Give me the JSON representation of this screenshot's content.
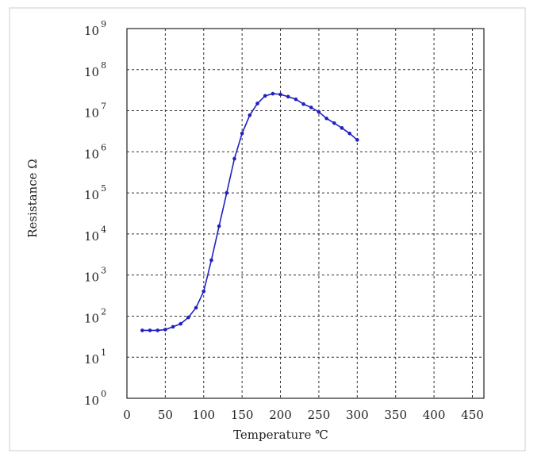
{
  "chart_data": {
    "type": "line",
    "x_label": "Temperature ℃",
    "y_label": "Resistance Ω",
    "log_y": true,
    "grid": true,
    "xlim": [
      0,
      465
    ],
    "ylim": [
      1,
      1000000000
    ],
    "xticks": [
      0,
      50,
      100,
      150,
      200,
      250,
      300,
      350,
      400,
      450
    ],
    "yticks": [
      {
        "value": 1,
        "label": "10",
        "exponent": "0"
      },
      {
        "value": 10,
        "label": "10",
        "exponent": "1"
      },
      {
        "value": 100,
        "label": "10",
        "exponent": "2"
      },
      {
        "value": 1000,
        "label": "10",
        "exponent": "3"
      },
      {
        "value": 10000,
        "label": "10",
        "exponent": "4"
      },
      {
        "value": 100000,
        "label": "10",
        "exponent": "5"
      },
      {
        "value": 1000000,
        "label": "10",
        "exponent": "6"
      },
      {
        "value": 10000000,
        "label": "10",
        "exponent": "7"
      },
      {
        "value": 100000000,
        "label": "10",
        "exponent": "8"
      },
      {
        "value": 1000000000,
        "label": "10",
        "exponent": "9"
      }
    ],
    "x": [
      20,
      30,
      40,
      50,
      60,
      70,
      80,
      90,
      100,
      110,
      120,
      130,
      140,
      150,
      160,
      170,
      180,
      190,
      200,
      210,
      220,
      230,
      240,
      250,
      260,
      270,
      280,
      290,
      300
    ],
    "series": [
      {
        "color": "#2020c0",
        "values": [
          45,
          45,
          45,
          47,
          55,
          65,
          93,
          160,
          400,
          2300,
          15500,
          100000,
          680000,
          2800000,
          7800000,
          15000000,
          23000000,
          26000000,
          25000000,
          22000000,
          19000000,
          14500000,
          12000000,
          9300000,
          6500000,
          5000000,
          3800000,
          2800000,
          1950000
        ]
      }
    ]
  }
}
